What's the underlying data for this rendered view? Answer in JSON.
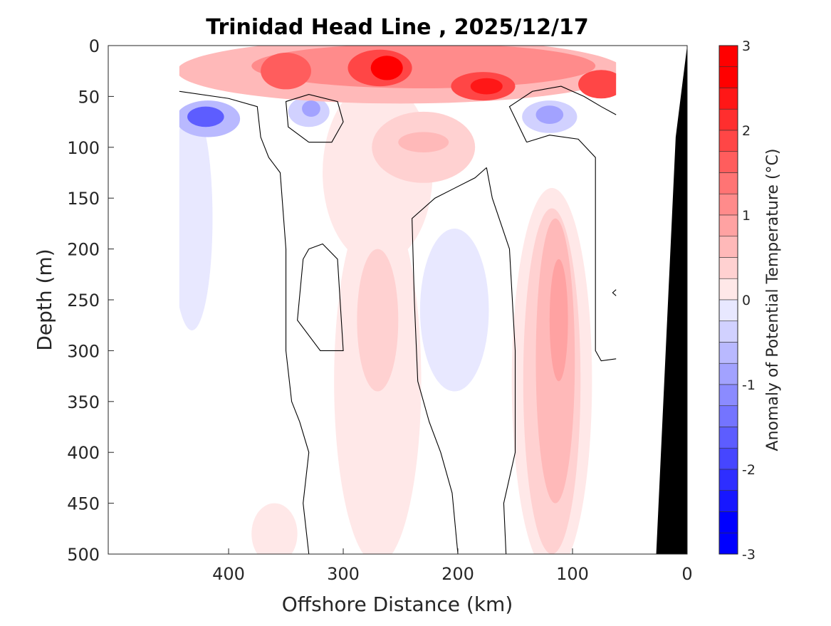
{
  "chart_data": {
    "type": "heatmap",
    "subtype": "filled-contour",
    "title": "Trinidad Head Line , 2025/12/17",
    "xlabel": "Offshore Distance (km)",
    "ylabel": "Depth (m)",
    "xlim": [
      505,
      0
    ],
    "ylim": [
      0,
      500
    ],
    "x_reversed": true,
    "y_reversed": true,
    "xticks": [
      400,
      300,
      200,
      100,
      0
    ],
    "yticks": [
      0,
      50,
      100,
      150,
      200,
      250,
      300,
      350,
      400,
      450,
      500
    ],
    "data_extent_km": [
      443,
      62
    ],
    "colorbar": {
      "label": "Anomaly of Potential Temperature (°C)",
      "range": [
        -3,
        3
      ],
      "step": 0.25,
      "ticks": [
        3,
        2,
        1,
        0,
        -1,
        -2,
        -3
      ],
      "max_color": "#ff0000",
      "min_color": "#0000ff"
    },
    "anomaly_features": [
      {
        "x_km": 250,
        "depth_m": 25,
        "rx_km": 195,
        "ry_m": 32,
        "anomaly": 0.75
      },
      {
        "x_km": 230,
        "depth_m": 20,
        "rx_km": 150,
        "ry_m": 22,
        "anomaly": 1.25
      },
      {
        "x_km": 270,
        "depth_m": 125,
        "rx_km": 48,
        "ry_m": 90,
        "anomaly": 0.25
      },
      {
        "x_km": 270,
        "depth_m": 330,
        "rx_km": 38,
        "ry_m": 180,
        "anomaly": 0.25
      },
      {
        "x_km": 270,
        "depth_m": 270,
        "rx_km": 18,
        "ry_m": 70,
        "anomaly": 0.5
      },
      {
        "x_km": 230,
        "depth_m": 100,
        "rx_km": 45,
        "ry_m": 35,
        "anomaly": 0.5
      },
      {
        "x_km": 230,
        "depth_m": 95,
        "rx_km": 22,
        "ry_m": 10,
        "anomaly": 0.75
      },
      {
        "x_km": 360,
        "depth_m": 480,
        "rx_km": 20,
        "ry_m": 30,
        "anomaly": 0.25
      },
      {
        "x_km": 118,
        "depth_m": 330,
        "rx_km": 35,
        "ry_m": 190,
        "anomaly": 0.25
      },
      {
        "x_km": 118,
        "depth_m": 330,
        "rx_km": 25,
        "ry_m": 170,
        "anomaly": 0.5
      },
      {
        "x_km": 115,
        "depth_m": 310,
        "rx_km": 17,
        "ry_m": 140,
        "anomaly": 0.75
      },
      {
        "x_km": 112,
        "depth_m": 270,
        "rx_km": 8,
        "ry_m": 60,
        "anomaly": 1.0
      },
      {
        "x_km": 268,
        "depth_m": 22,
        "rx_km": 28,
        "ry_m": 18,
        "anomaly": 2.0
      },
      {
        "x_km": 262,
        "depth_m": 22,
        "rx_km": 14,
        "ry_m": 12,
        "anomaly": 2.75
      },
      {
        "x_km": 178,
        "depth_m": 40,
        "rx_km": 28,
        "ry_m": 14,
        "anomaly": 2.0
      },
      {
        "x_km": 175,
        "depth_m": 40,
        "rx_km": 14,
        "ry_m": 8,
        "anomaly": 2.5
      },
      {
        "x_km": 75,
        "depth_m": 38,
        "rx_km": 20,
        "ry_m": 14,
        "anomaly": 2.0
      },
      {
        "x_km": 350,
        "depth_m": 25,
        "rx_km": 22,
        "ry_m": 18,
        "anomaly": 1.75
      },
      {
        "x_km": 432,
        "depth_m": 170,
        "rx_km": 18,
        "ry_m": 110,
        "anomaly": -0.25
      },
      {
        "x_km": 418,
        "depth_m": 72,
        "rx_km": 28,
        "ry_m": 18,
        "anomaly": -0.75
      },
      {
        "x_km": 420,
        "depth_m": 70,
        "rx_km": 16,
        "ry_m": 10,
        "anomaly": -1.75
      },
      {
        "x_km": 330,
        "depth_m": 65,
        "rx_km": 18,
        "ry_m": 15,
        "anomaly": -0.5
      },
      {
        "x_km": 328,
        "depth_m": 62,
        "rx_km": 8,
        "ry_m": 8,
        "anomaly": -1.0
      },
      {
        "x_km": 120,
        "depth_m": 70,
        "rx_km": 24,
        "ry_m": 16,
        "anomaly": -0.5
      },
      {
        "x_km": 120,
        "depth_m": 68,
        "rx_km": 12,
        "ry_m": 9,
        "anomaly": -1.0
      },
      {
        "x_km": 203,
        "depth_m": 260,
        "rx_km": 30,
        "ry_m": 80,
        "anomaly": -0.25
      }
    ],
    "zero_contours": [
      [
        [
          443,
          45
        ],
        [
          400,
          52
        ],
        [
          375,
          60
        ],
        [
          372,
          90
        ],
        [
          365,
          110
        ],
        [
          355,
          125
        ],
        [
          350,
          200
        ],
        [
          350,
          300
        ],
        [
          345,
          350
        ],
        [
          338,
          370
        ],
        [
          330,
          400
        ],
        [
          335,
          450
        ],
        [
          330,
          500
        ]
      ],
      [
        [
          330,
          95
        ],
        [
          310,
          95
        ],
        [
          300,
          75
        ],
        [
          305,
          55
        ],
        [
          330,
          48
        ],
        [
          350,
          55
        ],
        [
          348,
          80
        ],
        [
          330,
          95
        ]
      ],
      [
        [
          330,
          200
        ],
        [
          318,
          195
        ],
        [
          305,
          210
        ],
        [
          300,
          300
        ],
        [
          320,
          300
        ],
        [
          340,
          270
        ],
        [
          335,
          210
        ],
        [
          330,
          200
        ]
      ],
      [
        [
          175,
          120
        ],
        [
          185,
          130
        ],
        [
          220,
          150
        ],
        [
          240,
          170
        ],
        [
          238,
          250
        ],
        [
          235,
          330
        ],
        [
          225,
          370
        ],
        [
          215,
          400
        ],
        [
          205,
          440
        ],
        [
          200,
          500
        ]
      ],
      [
        [
          175,
          120
        ],
        [
          170,
          150
        ],
        [
          155,
          200
        ],
        [
          150,
          300
        ],
        [
          150,
          400
        ],
        [
          160,
          450
        ],
        [
          158,
          500
        ]
      ],
      [
        [
          140,
          95
        ],
        [
          120,
          88
        ],
        [
          95,
          92
        ],
        [
          80,
          110
        ],
        [
          80,
          130
        ],
        [
          80,
          200
        ],
        [
          80,
          300
        ],
        [
          75,
          310
        ],
        [
          62,
          308
        ]
      ],
      [
        [
          140,
          95
        ],
        [
          155,
          60
        ],
        [
          135,
          45
        ],
        [
          110,
          40
        ],
        [
          90,
          50
        ],
        [
          75,
          60
        ],
        [
          62,
          68
        ]
      ],
      [
        [
          62,
          240
        ],
        [
          65,
          243
        ],
        [
          62,
          246
        ]
      ]
    ],
    "bathymetry": [
      [
        0,
        0
      ],
      [
        10,
        90
      ],
      [
        27,
        500
      ],
      [
        0,
        500
      ]
    ]
  }
}
